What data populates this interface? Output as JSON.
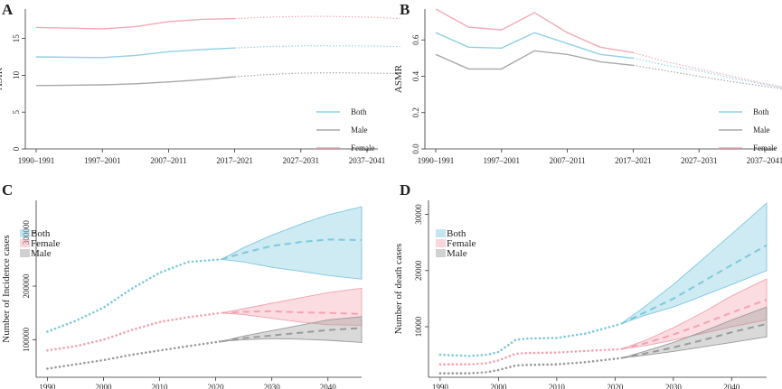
{
  "chart_data": [
    {
      "panel": "A",
      "type": "line",
      "ylabel": "ASIR",
      "xlabel": "",
      "categories": [
        "1990–1991",
        "1997–2001",
        "2007–2011",
        "2017–2021",
        "2027–2031",
        "2037–2041"
      ],
      "ylim": [
        0,
        19
      ],
      "yticks": [
        0,
        5,
        10,
        15
      ],
      "observed_points": 4,
      "series": [
        {
          "name": "Both",
          "color": "#8fd1e3",
          "x": [
            0,
            0.5,
            1,
            1.5,
            2,
            2.5,
            3,
            3.5,
            4,
            4.5,
            5,
            5.5
          ],
          "values": [
            12.5,
            12.45,
            12.4,
            12.7,
            13.2,
            13.5,
            13.7,
            13.9,
            14.0,
            14.0,
            14.0,
            13.9
          ]
        },
        {
          "name": "Male",
          "color": "#a8a8a8",
          "x": [
            0,
            0.5,
            1,
            1.5,
            2,
            2.5,
            3,
            3.5,
            4,
            4.5,
            5,
            5.5
          ],
          "values": [
            8.6,
            8.65,
            8.7,
            8.85,
            9.1,
            9.4,
            9.8,
            10.1,
            10.3,
            10.35,
            10.3,
            10.25
          ]
        },
        {
          "name": "Female",
          "color": "#f4a9b5",
          "x": [
            0,
            0.5,
            1,
            1.5,
            2,
            2.5,
            3,
            3.5,
            4,
            4.5,
            5,
            5.5
          ],
          "values": [
            16.5,
            16.4,
            16.3,
            16.6,
            17.3,
            17.6,
            17.7,
            17.9,
            18.0,
            18.0,
            17.9,
            17.7
          ]
        }
      ],
      "legend": [
        "Both",
        "Male",
        "Female"
      ]
    },
    {
      "panel": "B",
      "type": "line",
      "ylabel": "ASMR",
      "xlabel": "",
      "categories": [
        "1990–1991",
        "1997–2001",
        "2007–2011",
        "2017–2021",
        "2027–2031",
        "2037–2041"
      ],
      "ylim": [
        0,
        0.77
      ],
      "yticks": [
        0.0,
        0.2,
        0.4,
        0.6
      ],
      "observed_points": 4,
      "series": [
        {
          "name": "Both",
          "color": "#8fd1e3",
          "x": [
            0,
            0.5,
            1,
            1.5,
            2,
            2.5,
            3,
            3.5,
            4,
            4.5,
            5,
            5.5
          ],
          "values": [
            0.64,
            0.56,
            0.555,
            0.64,
            0.58,
            0.52,
            0.5,
            0.46,
            0.43,
            0.39,
            0.355,
            0.32
          ]
        },
        {
          "name": "Male",
          "color": "#a8a8a8",
          "x": [
            0,
            0.5,
            1,
            1.5,
            2,
            2.5,
            3,
            3.5,
            4,
            4.5,
            5,
            5.5
          ],
          "values": [
            0.52,
            0.44,
            0.44,
            0.54,
            0.52,
            0.48,
            0.46,
            0.43,
            0.4,
            0.37,
            0.345,
            0.32
          ]
        },
        {
          "name": "Female",
          "color": "#f4a9b5",
          "x": [
            0,
            0.5,
            1,
            1.5,
            2,
            2.5,
            3,
            3.5,
            4,
            4.5,
            5,
            5.5
          ],
          "values": [
            0.77,
            0.67,
            0.655,
            0.75,
            0.64,
            0.56,
            0.53,
            0.48,
            0.44,
            0.4,
            0.36,
            0.325
          ]
        }
      ],
      "legend": [
        "Both",
        "Male",
        "Female"
      ]
    },
    {
      "panel": "C",
      "type": "line",
      "ylabel": "Number of Incidence cases",
      "xlabel": "",
      "xticks": [
        1990,
        2000,
        2010,
        2020,
        2030,
        2040
      ],
      "xlim": [
        1988,
        2046
      ],
      "ylim": [
        30000,
        360000
      ],
      "yticks": [
        100000,
        200000,
        300000
      ],
      "series": [
        {
          "name": "Both",
          "color": "#7ec8de",
          "observed": {
            "x": [
              1990,
              1995,
              2000,
              2005,
              2010,
              2015,
              2021
            ],
            "values": [
              115000,
              135000,
              160000,
              195000,
              225000,
              245000,
              250000
            ]
          },
          "projection": {
            "x": [
              2021,
              2025,
              2030,
              2035,
              2040,
              2046
            ],
            "mean": [
              250000,
              262000,
              275000,
              282000,
              287000,
              286000
            ],
            "lower": [
              250000,
              245000,
              235000,
              228000,
              220000,
              213000
            ],
            "upper": [
              250000,
              272000,
              295000,
              315000,
              333000,
              348000
            ]
          }
        },
        {
          "name": "Female",
          "color": "#f4a2b0",
          "observed": {
            "x": [
              1990,
              1995,
              2000,
              2005,
              2010,
              2015,
              2021
            ],
            "values": [
              80000,
              88000,
              100000,
              118000,
              133000,
              142000,
              150000
            ]
          },
          "projection": {
            "x": [
              2021,
              2025,
              2030,
              2035,
              2040,
              2046
            ],
            "mean": [
              150000,
              152000,
              153000,
              151000,
              150000,
              148000
            ],
            "lower": [
              150000,
              147000,
              140000,
              133000,
              128000,
              127000
            ],
            "upper": [
              150000,
              158000,
              168000,
              178000,
              188000,
              196000
            ]
          }
        },
        {
          "name": "Male",
          "color": "#9a9a9a",
          "observed": {
            "x": [
              1990,
              1995,
              2000,
              2005,
              2010,
              2015,
              2021
            ],
            "values": [
              46000,
              54000,
              62000,
              72000,
              80000,
              88000,
              97000
            ]
          },
          "projection": {
            "x": [
              2021,
              2025,
              2030,
              2035,
              2040,
              2046
            ],
            "mean": [
              97000,
              103000,
              108000,
              113000,
              118000,
              122000
            ],
            "lower": [
              97000,
              100000,
              102000,
              101000,
              99000,
              95000
            ],
            "upper": [
              97000,
              107000,
              117000,
              127000,
              137000,
              143000
            ]
          }
        }
      ],
      "legend": [
        "Both",
        "Female",
        "Male"
      ]
    },
    {
      "panel": "D",
      "type": "line",
      "ylabel": "Number of death cases",
      "xlabel": "",
      "xticks": [
        1990,
        2000,
        2010,
        2020,
        2030,
        2040
      ],
      "xlim": [
        1988,
        2046
      ],
      "ylim": [
        1000,
        32500
      ],
      "yticks": [
        10000,
        20000,
        30000
      ],
      "series": [
        {
          "name": "Both",
          "color": "#7ec8de",
          "observed": {
            "x": [
              1990,
              1995,
              1998,
              2000,
              2003,
              2005,
              2010,
              2015,
              2021
            ],
            "values": [
              5000,
              4800,
              5000,
              5500,
              7700,
              7900,
              8000,
              8800,
              10500
            ]
          },
          "projection": {
            "x": [
              2021,
              2025,
              2030,
              2035,
              2040,
              2046
            ],
            "mean": [
              10500,
              12500,
              15000,
              18000,
              21000,
              24500
            ],
            "lower": [
              10500,
              12000,
              13500,
              15500,
              17500,
              20000
            ],
            "upper": [
              10500,
              13500,
              17500,
              22000,
              26500,
              32000
            ]
          }
        },
        {
          "name": "Female",
          "color": "#f4a2b0",
          "observed": {
            "x": [
              1990,
              1995,
              1998,
              2000,
              2003,
              2005,
              2010,
              2015,
              2021
            ],
            "values": [
              3300,
              3300,
              3500,
              4000,
              5200,
              5300,
              5400,
              5700,
              6000
            ]
          },
          "projection": {
            "x": [
              2021,
              2025,
              2030,
              2035,
              2040,
              2046
            ],
            "mean": [
              6000,
              7000,
              8600,
              10500,
              12500,
              14800
            ],
            "lower": [
              6000,
              6600,
              7600,
              8800,
              10000,
              11200
            ],
            "upper": [
              6000,
              7500,
              9800,
              12500,
              15500,
              18500
            ]
          }
        },
        {
          "name": "Male",
          "color": "#9a9a9a",
          "observed": {
            "x": [
              1990,
              1995,
              1998,
              2000,
              2003,
              2005,
              2010,
              2015,
              2021
            ],
            "values": [
              1700,
              1700,
              1900,
              2300,
              3100,
              3200,
              3300,
              3700,
              4400
            ]
          },
          "projection": {
            "x": [
              2021,
              2025,
              2030,
              2035,
              2040,
              2046
            ],
            "mean": [
              4400,
              5200,
              6300,
              7600,
              9000,
              10500
            ],
            "lower": [
              4400,
              4900,
              5600,
              6400,
              7200,
              8200
            ],
            "upper": [
              4400,
              5600,
              7200,
              9100,
              11200,
              13500
            ]
          }
        }
      ],
      "legend": [
        "Both",
        "Female",
        "Male"
      ]
    }
  ]
}
